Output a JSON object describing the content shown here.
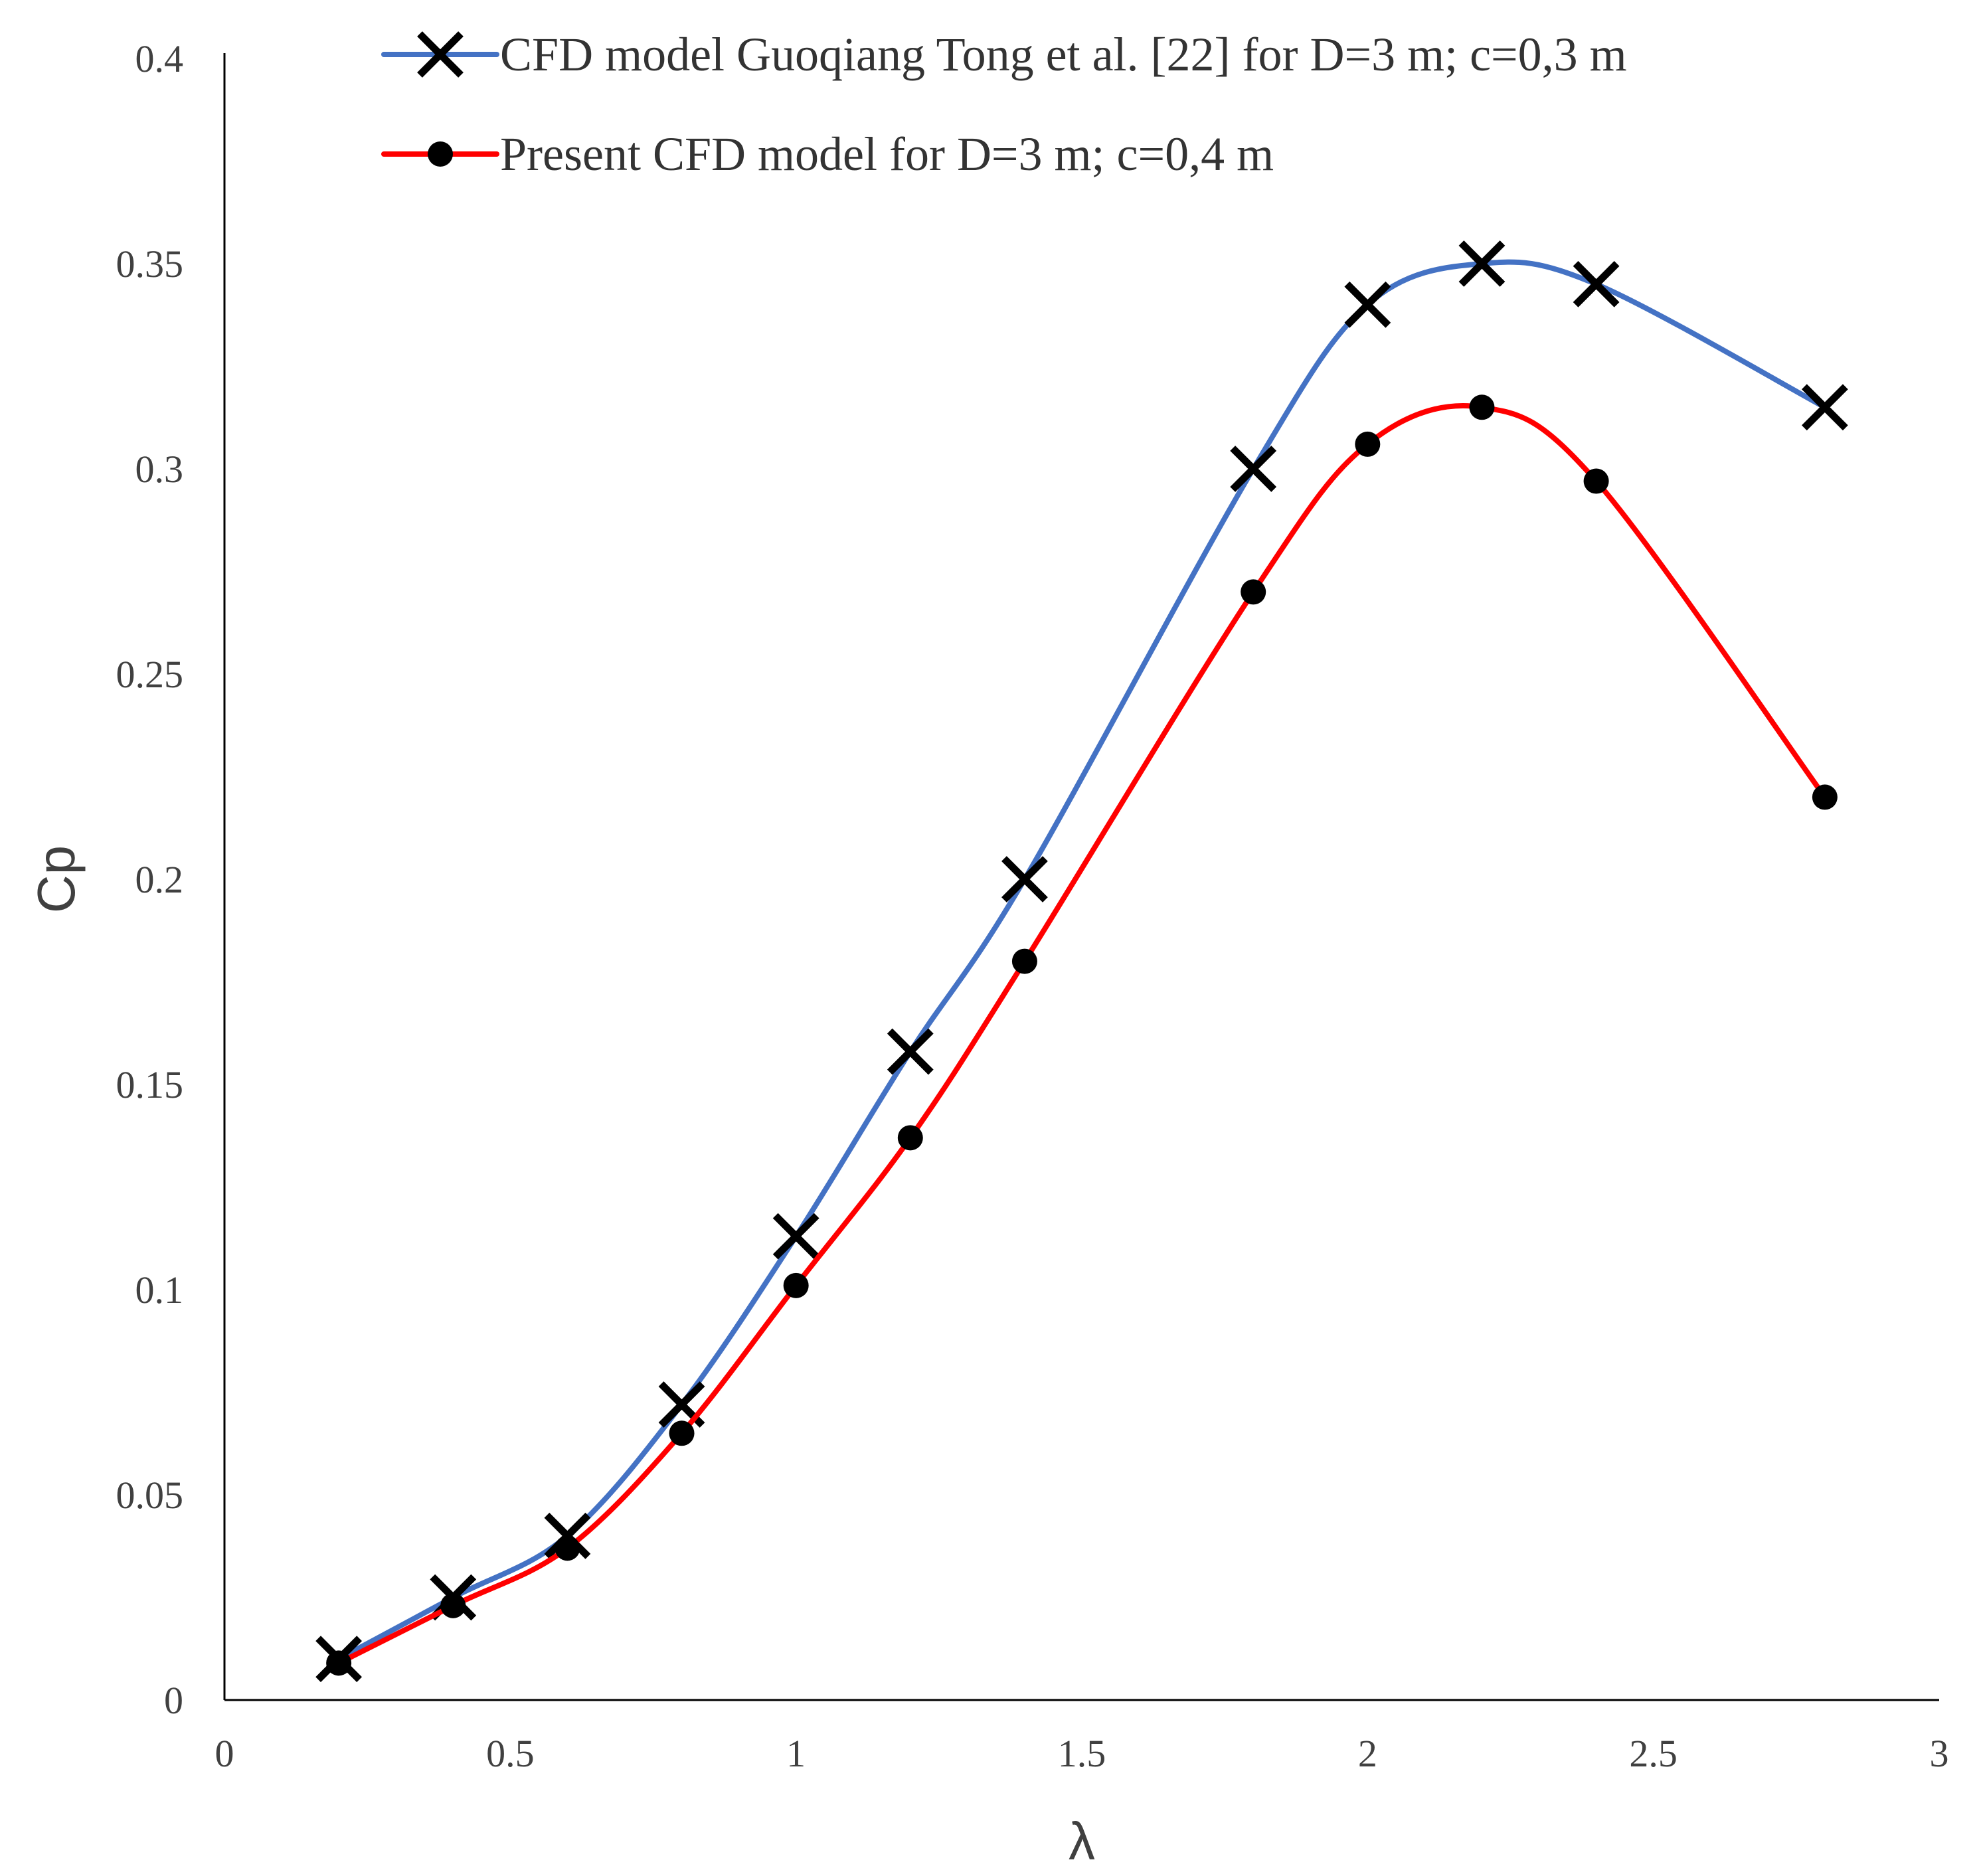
{
  "chart_data": {
    "type": "line",
    "title": "",
    "xlabel": "λ",
    "ylabel": "Cp",
    "xlim": [
      0,
      3
    ],
    "ylim": [
      0,
      0.4
    ],
    "x_ticks": [
      0,
      0.5,
      1,
      1.5,
      2,
      2.5,
      3
    ],
    "x_tick_labels": [
      "0",
      "0.5",
      "1",
      "1.5",
      "2",
      "2.5",
      "3"
    ],
    "y_ticks": [
      0,
      0.05,
      0.1,
      0.15,
      0.2,
      0.25,
      0.3,
      0.35,
      0.4
    ],
    "y_tick_labels": [
      "0",
      "0.05",
      "0.1",
      "0.15",
      "0.2",
      "0.25",
      "0.3",
      "0.35",
      "0.4"
    ],
    "grid": false,
    "legend_position": "top",
    "series": [
      {
        "name": "CFD model Guoqiang Tong et al. [22] for D=3 m; c=0,3 m",
        "color": "#4472c4",
        "marker": "x",
        "x": [
          0.2,
          0.4,
          0.6,
          0.8,
          1.0,
          1.2,
          1.4,
          1.8,
          2.0,
          2.2,
          2.4,
          2.8
        ],
        "y": [
          0.01,
          0.025,
          0.04,
          0.072,
          0.113,
          0.158,
          0.2,
          0.3,
          0.34,
          0.35,
          0.345,
          0.315
        ]
      },
      {
        "name": "Present CFD model for D=3 m; c=0,4 m",
        "color": "#ff0000",
        "marker": "circle",
        "x": [
          0.2,
          0.4,
          0.6,
          0.8,
          1.0,
          1.2,
          1.4,
          1.8,
          2.0,
          2.2,
          2.4,
          2.8
        ],
        "y": [
          0.009,
          0.023,
          0.037,
          0.065,
          0.101,
          0.137,
          0.18,
          0.27,
          0.306,
          0.315,
          0.297,
          0.22
        ]
      }
    ]
  }
}
